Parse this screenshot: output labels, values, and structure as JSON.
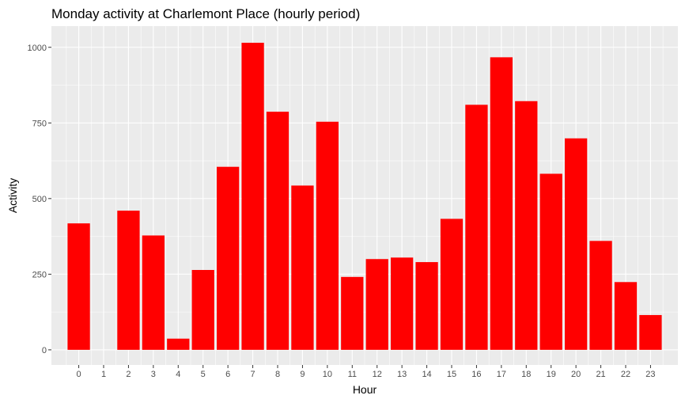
{
  "chart_data": {
    "type": "bar",
    "title": "Monday activity at Charlemont Place (hourly period)",
    "xlabel": "Hour",
    "ylabel": "Activity",
    "categories": [
      "0",
      "1",
      "2",
      "3",
      "4",
      "5",
      "6",
      "7",
      "8",
      "9",
      "10",
      "11",
      "12",
      "13",
      "14",
      "15",
      "16",
      "17",
      "18",
      "19",
      "20",
      "21",
      "22",
      "23"
    ],
    "values": [
      418,
      0,
      460,
      378,
      37,
      264,
      605,
      1015,
      787,
      543,
      754,
      241,
      300,
      305,
      290,
      433,
      810,
      967,
      822,
      582,
      699,
      360,
      224,
      115
    ],
    "ylim": [
      -50,
      1070
    ],
    "yticks": [
      0,
      250,
      500,
      750,
      1000
    ],
    "grid": true,
    "bar_color": "#FF0000",
    "panel_background": "#EBEBEB",
    "grid_color": "#FFFFFF"
  }
}
